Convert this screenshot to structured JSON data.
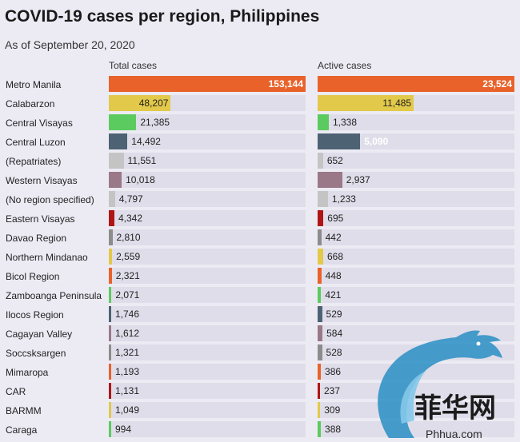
{
  "chart_data": {
    "type": "bar",
    "title": "COVID-19 cases per region, Philippines",
    "subtitle": "As of September 20, 2020",
    "columns": [
      {
        "name": "Total cases",
        "max": 153144
      },
      {
        "name": "Active cases",
        "max": 23524
      }
    ],
    "categories": [
      "Metro Manila",
      "Calabarzon",
      "Central Visayas",
      "Central Luzon",
      "(Repatriates)",
      "Western Visayas",
      "(No region specified)",
      "Eastern Visayas",
      "Davao Region",
      "Northern Mindanao",
      "Bicol Region",
      "Zamboanga Peninsula",
      "Ilocos Region",
      "Cagayan Valley",
      "Soccsksargen",
      "Mimaropa",
      "CAR",
      "BARMM",
      "Caraga"
    ],
    "colors": [
      "#e8622a",
      "#e2c94a",
      "#5ccb5f",
      "#4d6272",
      "#c4c4c4",
      "#9a7888",
      "#c4c4c4",
      "#b01515",
      "#8c8c8c",
      "#e2c94a",
      "#e8622a",
      "#5ccb5f",
      "#4d6272",
      "#9a7888",
      "#8c8c8c",
      "#e8622a",
      "#b01515",
      "#e2c94a",
      "#5ccb5f"
    ],
    "series": [
      {
        "name": "Total cases",
        "values": [
          153144,
          48207,
          21385,
          14492,
          11551,
          10018,
          4797,
          4342,
          2810,
          2559,
          2321,
          2071,
          1746,
          1612,
          1321,
          1193,
          1131,
          1049,
          994
        ],
        "labels": [
          "153,144",
          "48,207",
          "21,385",
          "14,492",
          "11,551",
          "10,018",
          "4,797",
          "4,342",
          "2,810",
          "2,559",
          "2,321",
          "2,071",
          "1,746",
          "1,612",
          "1,321",
          "1,193",
          "1,131",
          "1,049",
          "994"
        ]
      },
      {
        "name": "Active cases",
        "values": [
          23524,
          11485,
          1338,
          5090,
          652,
          2937,
          1233,
          695,
          442,
          668,
          448,
          421,
          529,
          584,
          528,
          386,
          237,
          309,
          388
        ],
        "labels": [
          "23,524",
          "11,485",
          "1,338",
          "5,090",
          "652",
          "2,937",
          "1,233",
          "695",
          "442",
          "668",
          "448",
          "421",
          "529",
          "584",
          "528",
          "386",
          "237",
          "309",
          "388"
        ]
      }
    ]
  },
  "watermark": {
    "text_cn": "菲华网",
    "text_url": "Phhua.com"
  }
}
